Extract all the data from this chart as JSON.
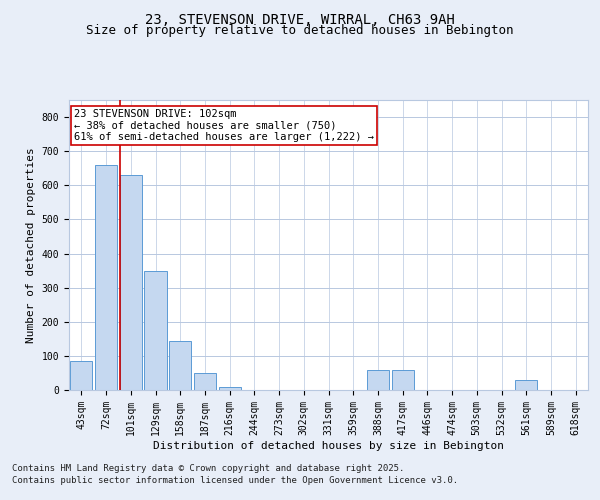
{
  "title_line1": "23, STEVENSON DRIVE, WIRRAL, CH63 9AH",
  "title_line2": "Size of property relative to detached houses in Bebington",
  "xlabel": "Distribution of detached houses by size in Bebington",
  "ylabel": "Number of detached properties",
  "categories": [
    "43sqm",
    "72sqm",
    "101sqm",
    "129sqm",
    "158sqm",
    "187sqm",
    "216sqm",
    "244sqm",
    "273sqm",
    "302sqm",
    "331sqm",
    "359sqm",
    "388sqm",
    "417sqm",
    "446sqm",
    "474sqm",
    "503sqm",
    "532sqm",
    "561sqm",
    "589sqm",
    "618sqm"
  ],
  "values": [
    85,
    660,
    630,
    350,
    145,
    50,
    10,
    0,
    0,
    0,
    0,
    0,
    60,
    60,
    0,
    0,
    0,
    0,
    30,
    0,
    0
  ],
  "bar_color": "#c5d8f0",
  "bar_edge_color": "#5b9bd5",
  "highlight_index": 2,
  "highlight_line_color": "#cc0000",
  "annotation_text": "23 STEVENSON DRIVE: 102sqm\n← 38% of detached houses are smaller (750)\n61% of semi-detached houses are larger (1,222) →",
  "annotation_box_color": "#ffffff",
  "annotation_box_edge": "#cc0000",
  "ylim": [
    0,
    850
  ],
  "yticks": [
    0,
    100,
    200,
    300,
    400,
    500,
    600,
    700,
    800
  ],
  "footnote_line1": "Contains HM Land Registry data © Crown copyright and database right 2025.",
  "footnote_line2": "Contains public sector information licensed under the Open Government Licence v3.0.",
  "background_color": "#e8eef8",
  "plot_background": "#ffffff",
  "grid_color": "#b8c8e0",
  "title_fontsize": 10,
  "subtitle_fontsize": 9,
  "label_fontsize": 8,
  "tick_fontsize": 7,
  "annotation_fontsize": 7.5,
  "footnote_fontsize": 6.5
}
